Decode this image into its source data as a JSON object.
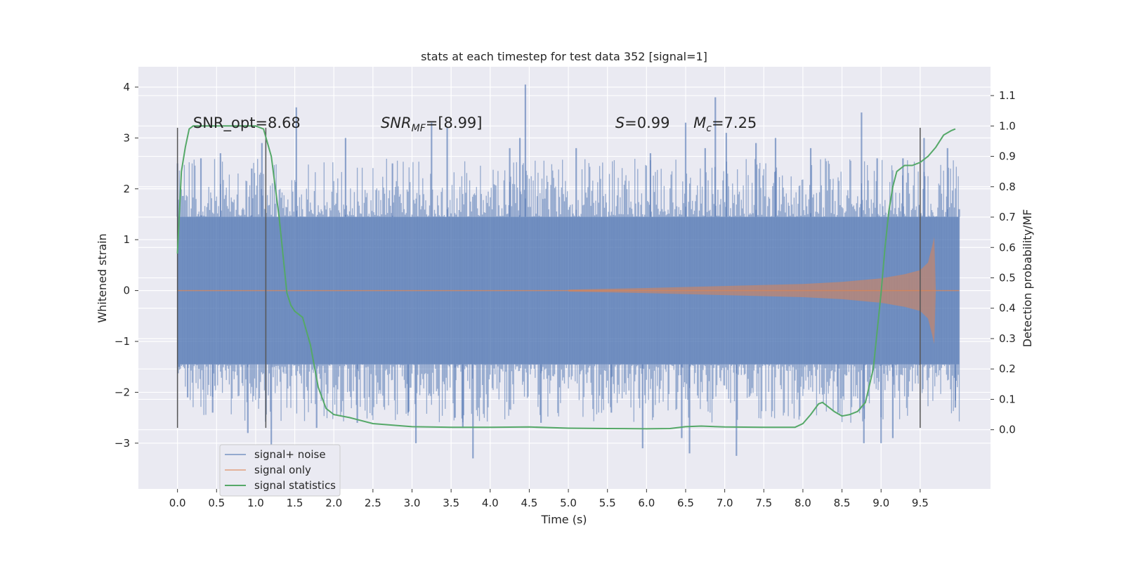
{
  "chart_data": {
    "type": "line",
    "title": "stats at each timestep for test data 352 [signal=1]",
    "xlabel": "Time (s)",
    "ylabel": "Whitened strain",
    "ylabel_right": "Detection probability/MF",
    "xlim": [
      -0.5,
      10.4
    ],
    "ylim": [
      -3.9,
      4.4
    ],
    "ylim_right": [
      -0.195,
      1.195
    ],
    "x_ticks": [
      0.0,
      0.5,
      1.0,
      1.5,
      2.0,
      2.5,
      3.0,
      3.5,
      4.0,
      4.5,
      5.0,
      5.5,
      6.0,
      6.5,
      7.0,
      7.5,
      8.0,
      8.5,
      9.0,
      9.5
    ],
    "x_tick_labels": [
      "0.0",
      "0.5",
      "1.0",
      "1.5",
      "2.0",
      "2.5",
      "3.0",
      "3.5",
      "4.0",
      "4.5",
      "5.0",
      "5.5",
      "6.0",
      "6.5",
      "7.0",
      "7.5",
      "8.0",
      "8.5",
      "9.0",
      "9.5"
    ],
    "y_ticks": [
      -3,
      -2,
      -1,
      0,
      1,
      2,
      3,
      4
    ],
    "y_tick_labels": [
      "−3",
      "−2",
      "−1",
      "0",
      "1",
      "2",
      "3",
      "4"
    ],
    "y_right_ticks": [
      0.0,
      0.1,
      0.2,
      0.3,
      0.4,
      0.5,
      0.6,
      0.7,
      0.8,
      0.9,
      1.0,
      1.1
    ],
    "y_right_tick_labels": [
      "0.0",
      "0.1",
      "0.2",
      "0.3",
      "0.4",
      "0.5",
      "0.6",
      "0.7",
      "0.8",
      "0.9",
      "1.0",
      "1.1"
    ],
    "grid": true,
    "legend_position": "lower-left",
    "annotations": [
      {
        "text": "SNR_opt=8.68",
        "x": 0.2,
        "y": 3.2
      },
      {
        "text": "SNR",
        "sub": "MF",
        "rest": "=[8.99]",
        "italic": true,
        "x": 2.6,
        "y": 3.2
      },
      {
        "text": "S",
        "rest": "=0.99",
        "italic": true,
        "x": 5.6,
        "y": 3.2
      },
      {
        "text": "M",
        "sub": "c",
        "rest": "=7.25",
        "italic": true,
        "x": 6.6,
        "y": 3.2
      }
    ],
    "vertical_lines": [
      {
        "x": 0.0,
        "y0": -2.7,
        "y1": 3.2
      },
      {
        "x": 1.13,
        "y0": -2.7,
        "y1": 3.2
      },
      {
        "x": 9.5,
        "y0": -2.7,
        "y1": 3.2
      }
    ],
    "series": [
      {
        "name": "signal+ noise",
        "color": "#4c72b0",
        "axis": "left",
        "band_core": [
          -1.45,
          1.45
        ],
        "x_range": [
          0.0,
          10.0
        ],
        "spikes": [
          {
            "x": 0.0,
            "y": 2.5
          },
          {
            "x": 0.02,
            "y": -1.5
          },
          {
            "x": 0.13,
            "y": -2.1
          },
          {
            "x": 0.3,
            "y": 2.6
          },
          {
            "x": 0.45,
            "y": -2.4
          },
          {
            "x": 0.55,
            "y": 2.7
          },
          {
            "x": 0.9,
            "y": -2.8
          },
          {
            "x": 0.95,
            "y": 2.4
          },
          {
            "x": 1.08,
            "y": 2.9
          },
          {
            "x": 1.2,
            "y": -3.1
          },
          {
            "x": 1.52,
            "y": 3.6
          },
          {
            "x": 1.78,
            "y": -2.7
          },
          {
            "x": 2.15,
            "y": 3.0
          },
          {
            "x": 2.3,
            "y": -2.6
          },
          {
            "x": 2.75,
            "y": 2.5
          },
          {
            "x": 2.95,
            "y": -2.4
          },
          {
            "x": 3.05,
            "y": -3.0
          },
          {
            "x": 3.25,
            "y": 3.3
          },
          {
            "x": 3.45,
            "y": 3.2
          },
          {
            "x": 3.55,
            "y": -2.5
          },
          {
            "x": 3.65,
            "y": -2.7
          },
          {
            "x": 3.78,
            "y": -3.3
          },
          {
            "x": 4.25,
            "y": 2.8
          },
          {
            "x": 4.38,
            "y": 3.0
          },
          {
            "x": 4.45,
            "y": 4.05
          },
          {
            "x": 4.65,
            "y": -2.6
          },
          {
            "x": 5.1,
            "y": 2.8
          },
          {
            "x": 5.55,
            "y": -2.4
          },
          {
            "x": 5.95,
            "y": -3.1
          },
          {
            "x": 6.05,
            "y": 2.7
          },
          {
            "x": 6.45,
            "y": -2.9
          },
          {
            "x": 6.5,
            "y": 3.3
          },
          {
            "x": 6.55,
            "y": -3.2
          },
          {
            "x": 6.75,
            "y": 2.8
          },
          {
            "x": 6.88,
            "y": 3.8
          },
          {
            "x": 7.02,
            "y": 3.1
          },
          {
            "x": 7.15,
            "y": -3.25
          },
          {
            "x": 7.4,
            "y": 2.9
          },
          {
            "x": 7.65,
            "y": 3.0
          },
          {
            "x": 8.1,
            "y": 2.8
          },
          {
            "x": 8.45,
            "y": -2.4
          },
          {
            "x": 8.75,
            "y": 3.5
          },
          {
            "x": 8.78,
            "y": -3.0
          },
          {
            "x": 8.95,
            "y": 2.6
          },
          {
            "x": 9.0,
            "y": -3.0
          },
          {
            "x": 9.15,
            "y": -2.9
          },
          {
            "x": 9.28,
            "y": 2.6
          },
          {
            "x": 9.55,
            "y": 3.0
          },
          {
            "x": 9.85,
            "y": 2.8
          },
          {
            "x": 9.95,
            "y": -2.3
          },
          {
            "x": 10.0,
            "y": 1.6
          }
        ]
      },
      {
        "name": "signal only",
        "color": "#dd8452",
        "axis": "left",
        "envelope": [
          {
            "x": 5.0,
            "a": 0.02
          },
          {
            "x": 6.0,
            "a": 0.05
          },
          {
            "x": 7.0,
            "a": 0.09
          },
          {
            "x": 8.0,
            "a": 0.13
          },
          {
            "x": 8.5,
            "a": 0.17
          },
          {
            "x": 9.0,
            "a": 0.24
          },
          {
            "x": 9.3,
            "a": 0.32
          },
          {
            "x": 9.5,
            "a": 0.4
          },
          {
            "x": 9.6,
            "a": 0.55
          },
          {
            "x": 9.65,
            "a": 0.85
          },
          {
            "x": 9.68,
            "a": 1.05
          },
          {
            "x": 9.7,
            "a": 0.0
          }
        ]
      },
      {
        "name": "signal statistics",
        "color": "#55a868",
        "axis": "right",
        "x": [
          0.0,
          0.05,
          0.1,
          0.15,
          0.2,
          0.3,
          0.5,
          0.7,
          0.9,
          1.0,
          1.1,
          1.2,
          1.3,
          1.4,
          1.45,
          1.5,
          1.6,
          1.7,
          1.8,
          1.9,
          2.0,
          2.2,
          2.5,
          3.0,
          3.5,
          4.0,
          4.5,
          5.0,
          5.5,
          6.0,
          6.3,
          6.5,
          6.7,
          7.0,
          7.5,
          7.9,
          8.0,
          8.1,
          8.2,
          8.25,
          8.3,
          8.4,
          8.5,
          8.6,
          8.7,
          8.8,
          8.9,
          9.0,
          9.05,
          9.1,
          9.15,
          9.2,
          9.3,
          9.4,
          9.5,
          9.6,
          9.7,
          9.8,
          9.9,
          9.95
        ],
        "y": [
          0.58,
          0.85,
          0.93,
          0.99,
          1.0,
          1.0,
          1.0,
          1.0,
          1.0,
          1.0,
          0.99,
          0.9,
          0.7,
          0.45,
          0.41,
          0.39,
          0.37,
          0.28,
          0.14,
          0.07,
          0.05,
          0.04,
          0.02,
          0.01,
          0.008,
          0.008,
          0.009,
          0.005,
          0.004,
          0.003,
          0.004,
          0.01,
          0.012,
          0.009,
          0.008,
          0.008,
          0.02,
          0.05,
          0.085,
          0.09,
          0.08,
          0.06,
          0.045,
          0.05,
          0.06,
          0.09,
          0.2,
          0.45,
          0.6,
          0.72,
          0.8,
          0.85,
          0.87,
          0.87,
          0.88,
          0.9,
          0.93,
          0.97,
          0.985,
          0.99
        ]
      }
    ]
  }
}
